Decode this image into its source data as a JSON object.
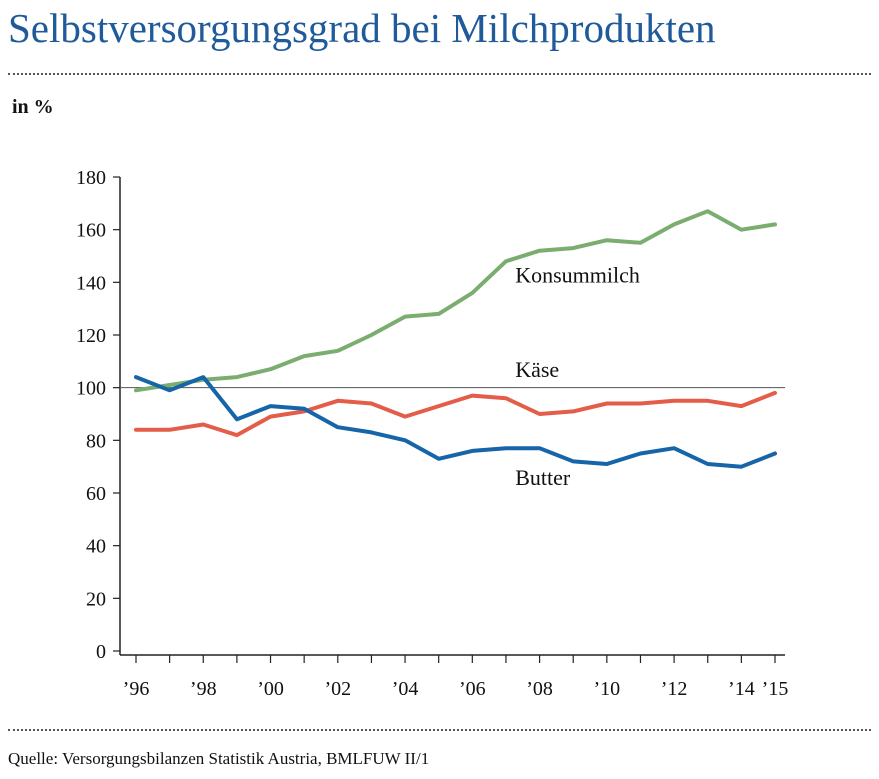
{
  "header": {
    "title": "Selbstversorgungsgrad bei Milchprodukten",
    "unit": "in %"
  },
  "footer": {
    "source": "Quelle: Versorgungsbilanzen Statistik Austria, BMLFUW II/1"
  },
  "colors": {
    "title": "#1f5a9a",
    "konsummilch": "#7aad6f",
    "kaese": "#e35d48",
    "butter": "#1565a8"
  },
  "chart_data": {
    "type": "line",
    "x": [
      1996,
      1997,
      1998,
      1999,
      2000,
      2001,
      2002,
      2003,
      2004,
      2005,
      2006,
      2007,
      2008,
      2009,
      2010,
      2011,
      2012,
      2013,
      2014,
      2015
    ],
    "x_tick_labels": [
      "’96",
      "’98",
      "’00",
      "’02",
      "’04",
      "’06",
      "’08",
      "’10",
      "’12",
      "’14",
      "’15"
    ],
    "x_tick_values": [
      1996,
      1998,
      2000,
      2002,
      2004,
      2006,
      2008,
      2010,
      2012,
      2014,
      2015
    ],
    "y_ticks": [
      0,
      20,
      40,
      60,
      80,
      100,
      120,
      140,
      160,
      180
    ],
    "ylim": [
      0,
      180
    ],
    "reference_line": 100,
    "grid": false,
    "series": [
      {
        "name": "Konsummilch",
        "color": "#7aad6f",
        "values": [
          99,
          101,
          103,
          104,
          107,
          112,
          114,
          120,
          127,
          128,
          136,
          148,
          152,
          153,
          156,
          155,
          162,
          167,
          160,
          162
        ]
      },
      {
        "name": "Käse",
        "color": "#e35d48",
        "values": [
          84,
          84,
          86,
          82,
          89,
          91,
          95,
          94,
          89,
          93,
          97,
          96,
          90,
          91,
          94,
          94,
          95,
          95,
          93,
          98
        ]
      },
      {
        "name": "Butter",
        "color": "#1565a8",
        "values": [
          104,
          99,
          104,
          88,
          93,
          92,
          85,
          83,
          80,
          73,
          76,
          77,
          77,
          72,
          71,
          75,
          77,
          71,
          70,
          75
        ]
      }
    ]
  }
}
